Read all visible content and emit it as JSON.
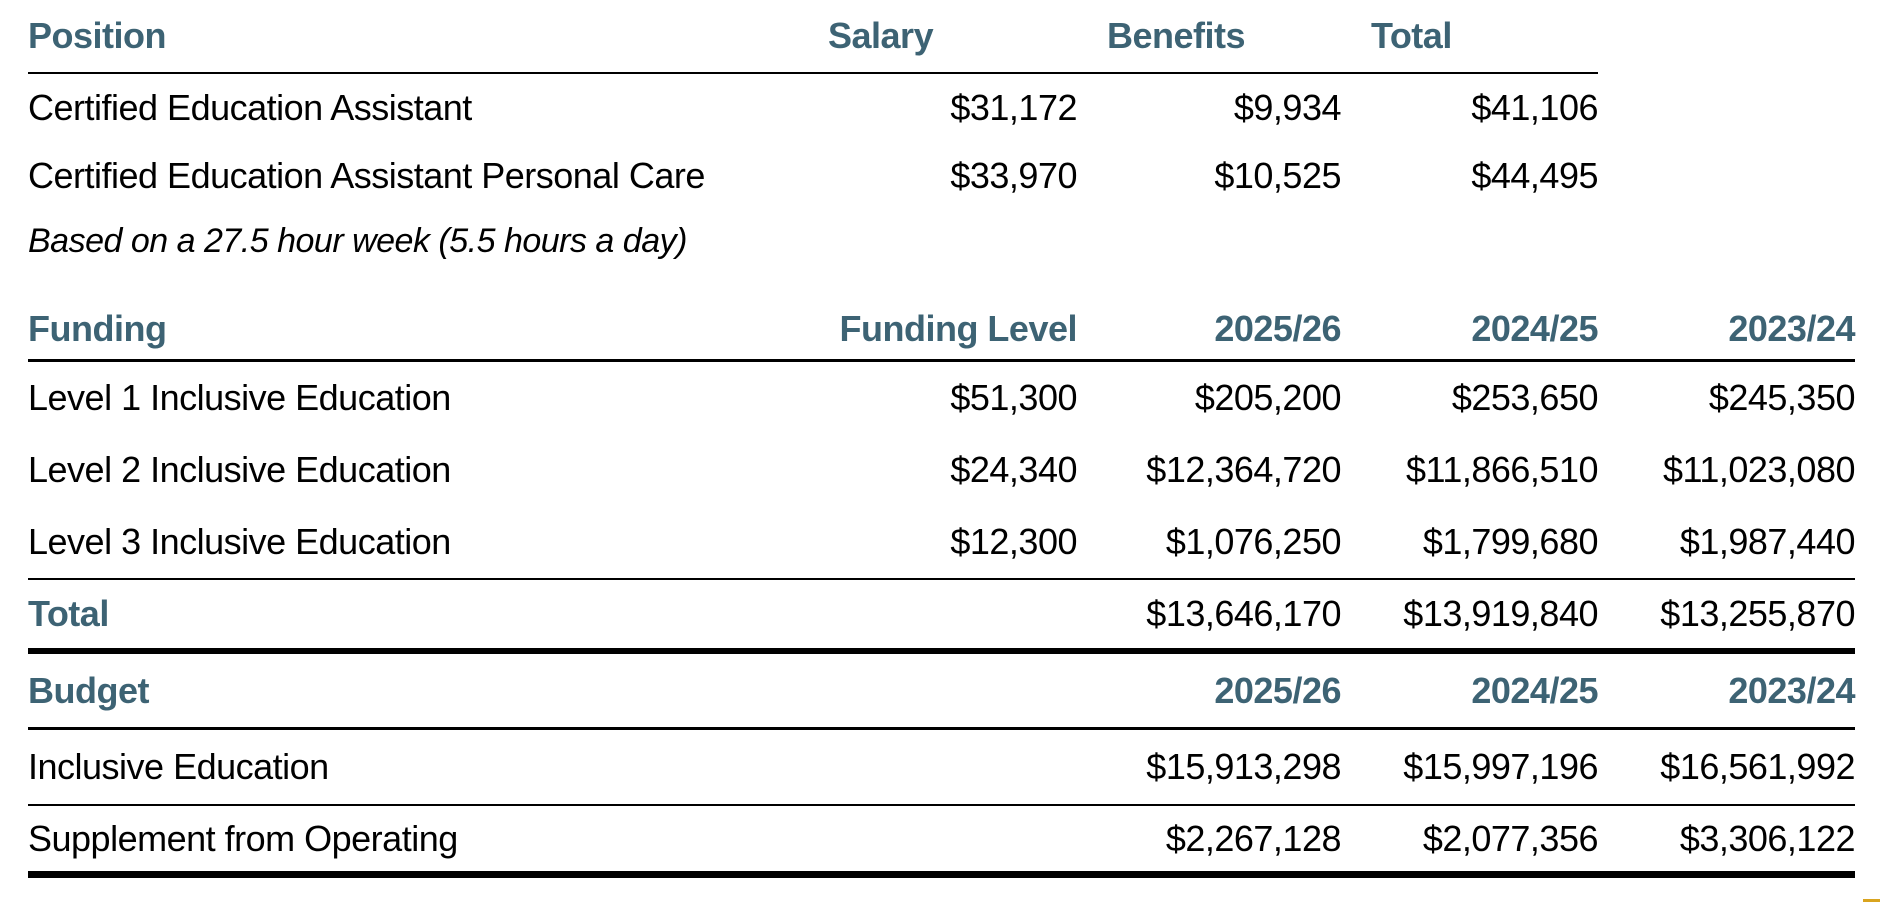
{
  "colors": {
    "header_text": "#3D6374",
    "body_text": "#000000",
    "rule": "#000000",
    "accent_gold": "#D9A41F"
  },
  "position_table": {
    "headers": {
      "position": "Position",
      "salary": "Salary",
      "benefits": "Benefits",
      "total": "Total"
    },
    "rows": [
      {
        "position": "Certified Education Assistant",
        "salary": "$31,172",
        "benefits": "$9,934",
        "total": "$41,106"
      },
      {
        "position": "Certified Education Assistant Personal Care",
        "salary": "$33,970",
        "benefits": "$10,525",
        "total": "$44,495"
      }
    ],
    "note": "Based on a 27.5 hour week (5.5 hours a day)"
  },
  "funding_table": {
    "headers": {
      "funding": "Funding",
      "funding_level": "Funding Level",
      "year1": "2025/26",
      "year2": "2024/25",
      "year3": "2023/24"
    },
    "rows": [
      {
        "label": "Level 1 Inclusive Education",
        "funding_level": "$51,300",
        "year1": "$205,200",
        "year2": "$253,650",
        "year3": "$245,350"
      },
      {
        "label": "Level 2 Inclusive Education",
        "funding_level": "$24,340",
        "year1": "$12,364,720",
        "year2": "$11,866,510",
        "year3": "$11,023,080"
      },
      {
        "label": "Level 3 Inclusive Education",
        "funding_level": "$12,300",
        "year1": "$1,076,250",
        "year2": "$1,799,680",
        "year3": "$1,987,440"
      }
    ],
    "total_row": {
      "label": "Total",
      "year1": "$13,646,170",
      "year2": "$13,919,840",
      "year3": "$13,255,870"
    }
  },
  "budget_table": {
    "headers": {
      "budget": "Budget",
      "year1": "2025/26",
      "year2": "2024/25",
      "year3": "2023/24"
    },
    "rows": [
      {
        "label": "Inclusive Education",
        "year1": "$15,913,298",
        "year2": "$15,997,196",
        "year3": "$16,561,992"
      },
      {
        "label": "Supplement from Operating",
        "year1": "$2,267,128",
        "year2": "$2,077,356",
        "year3": "$3,306,122"
      }
    ]
  }
}
